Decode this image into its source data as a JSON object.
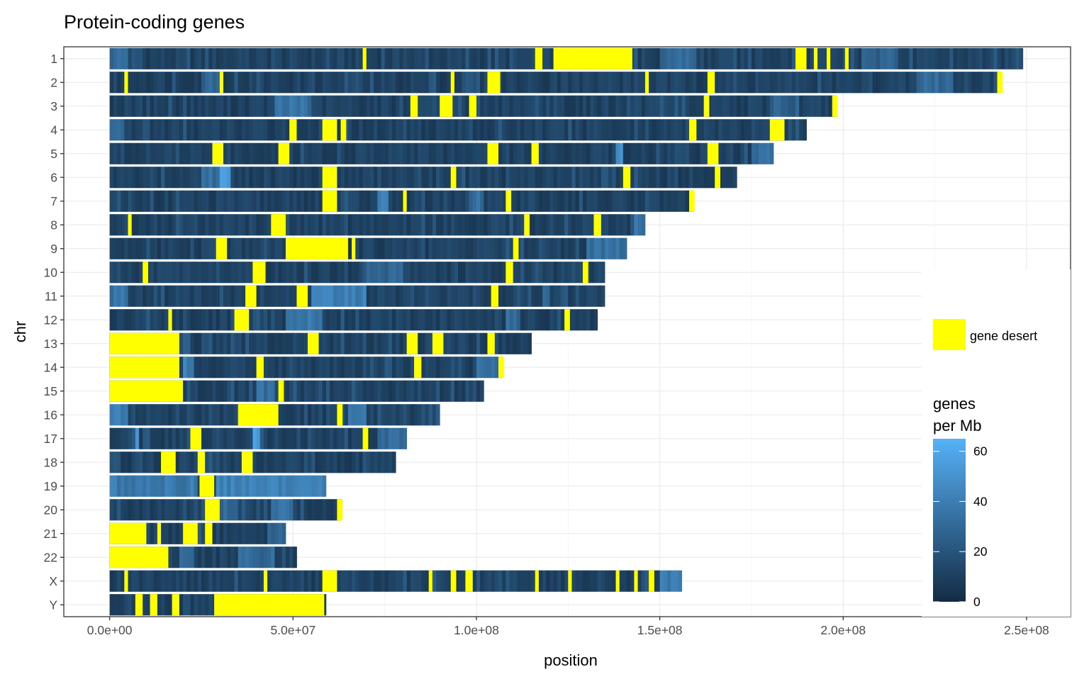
{
  "chart_data": {
    "type": "heatmap",
    "title": "Protein-coding genes",
    "xlabel": "position",
    "ylabel": "chr",
    "xlim": [
      -12500000,
      262000000
    ],
    "x_ticks": [
      {
        "value": 0,
        "label": "0.0e+00"
      },
      {
        "value": 50000000,
        "label": "5.0e+07"
      },
      {
        "value": 100000000,
        "label": "1.0e+08"
      },
      {
        "value": 150000000,
        "label": "1.5e+08"
      },
      {
        "value": 200000000,
        "label": "2.0e+08"
      },
      {
        "value": 250000000,
        "label": "2.5e+08"
      }
    ],
    "grid": true,
    "bin_size_bp": 1000000,
    "chromosomes": [
      {
        "name": "1",
        "length": 249000000,
        "deserts": [
          [
            121000000,
            142500000
          ],
          [
            69000000,
            70000000
          ],
          [
            116000000,
            118000000
          ],
          [
            187000000,
            190000000
          ],
          [
            192000000,
            193000000
          ],
          [
            195500000,
            196500000
          ],
          [
            200500000,
            201500000
          ]
        ],
        "peaks": [
          [
            0,
            5000000,
            30
          ],
          [
            150000000,
            160000000,
            30
          ],
          [
            205000000,
            215000000,
            26
          ]
        ]
      },
      {
        "name": "2",
        "length": 243000000,
        "deserts": [
          [
            4000000,
            5000000
          ],
          [
            93000000,
            94000000
          ],
          [
            103000000,
            106500000
          ],
          [
            163000000,
            165000000
          ],
          [
            242000000,
            243500000
          ],
          [
            30000000,
            31000000
          ],
          [
            146000000,
            147000000
          ]
        ],
        "peaks": [
          [
            25000000,
            30000000,
            28
          ],
          [
            220000000,
            230000000,
            30
          ]
        ]
      },
      {
        "name": "3",
        "length": 198000000,
        "deserts": [
          [
            90000000,
            93500000
          ],
          [
            98000000,
            100000000
          ],
          [
            82000000,
            84000000
          ],
          [
            162000000,
            163500000
          ],
          [
            197000000,
            198500000
          ]
        ],
        "peaks": [
          [
            45000000,
            55000000,
            34
          ],
          [
            180000000,
            188000000,
            26
          ]
        ]
      },
      {
        "name": "4",
        "length": 190000000,
        "deserts": [
          [
            58000000,
            62000000
          ],
          [
            180000000,
            184000000
          ],
          [
            158000000,
            160000000
          ],
          [
            49000000,
            51000000
          ],
          [
            63000000,
            64500000
          ]
        ],
        "peaks": [
          [
            0,
            4000000,
            30
          ]
        ]
      },
      {
        "name": "5",
        "length": 181000000,
        "deserts": [
          [
            28000000,
            31000000
          ],
          [
            46000000,
            49000000
          ],
          [
            103000000,
            106000000
          ],
          [
            163000000,
            166000000
          ],
          [
            115000000,
            117000000
          ]
        ],
        "peaks": [
          [
            138000000,
            140000000,
            45
          ],
          [
            175000000,
            181000000,
            32
          ]
        ]
      },
      {
        "name": "6",
        "length": 171000000,
        "deserts": [
          [
            58000000,
            62000000
          ],
          [
            93000000,
            94500000
          ],
          [
            140000000,
            142000000
          ],
          [
            165000000,
            166500000
          ]
        ],
        "peaks": [
          [
            30000000,
            33000000,
            55
          ],
          [
            25000000,
            30000000,
            32
          ]
        ]
      },
      {
        "name": "7",
        "length": 159000000,
        "deserts": [
          [
            58000000,
            62000000
          ],
          [
            80000000,
            81000000
          ],
          [
            108000000,
            109500000
          ],
          [
            158000000,
            159500000
          ]
        ],
        "peaks": [
          [
            73000000,
            76000000,
            40
          ],
          [
            98000000,
            102000000,
            32
          ]
        ]
      },
      {
        "name": "8",
        "length": 146000000,
        "deserts": [
          [
            44000000,
            48000000
          ],
          [
            132000000,
            134000000
          ],
          [
            113000000,
            114500000
          ],
          [
            5000000,
            6000000
          ]
        ],
        "peaks": [
          [
            143000000,
            146000000,
            35
          ]
        ]
      },
      {
        "name": "9",
        "length": 141000000,
        "deserts": [
          [
            48000000,
            65000000
          ],
          [
            29000000,
            32000000
          ],
          [
            110000000,
            111500000
          ],
          [
            66000000,
            67000000
          ]
        ],
        "peaks": [
          [
            130000000,
            141000000,
            34
          ]
        ]
      },
      {
        "name": "10",
        "length": 135000000,
        "deserts": [
          [
            39000000,
            42500000
          ],
          [
            108000000,
            110000000
          ],
          [
            129000000,
            130500000
          ],
          [
            9000000,
            10500000
          ]
        ],
        "peaks": [
          [
            70000000,
            80000000,
            28
          ]
        ]
      },
      {
        "name": "11",
        "length": 135000000,
        "deserts": [
          [
            37000000,
            40000000
          ],
          [
            51000000,
            54000000
          ],
          [
            104000000,
            106000000
          ]
        ],
        "peaks": [
          [
            0,
            5000000,
            35
          ],
          [
            55000000,
            70000000,
            40
          ],
          [
            118000000,
            120000000,
            30
          ]
        ]
      },
      {
        "name": "12",
        "length": 133000000,
        "deserts": [
          [
            34000000,
            38000000
          ],
          [
            124000000,
            125500000
          ],
          [
            16000000,
            17000000
          ]
        ],
        "peaks": [
          [
            48000000,
            58000000,
            38
          ],
          [
            108000000,
            112000000,
            30
          ]
        ]
      },
      {
        "name": "13",
        "length": 115000000,
        "deserts": [
          [
            0,
            19000000
          ],
          [
            54000000,
            57000000
          ],
          [
            81000000,
            84000000
          ],
          [
            88000000,
            91000000
          ],
          [
            103000000,
            105000000
          ]
        ],
        "peaks": [
          [
            20000000,
            22000000,
            28
          ]
        ]
      },
      {
        "name": "14",
        "length": 107000000,
        "deserts": [
          [
            0,
            19000000
          ],
          [
            40000000,
            42000000
          ],
          [
            83000000,
            85000000
          ],
          [
            106000000,
            107500000
          ]
        ],
        "peaks": [
          [
            20000000,
            23000000,
            40
          ],
          [
            100000000,
            106000000,
            34
          ]
        ]
      },
      {
        "name": "15",
        "length": 102000000,
        "deserts": [
          [
            0,
            20000000
          ],
          [
            46000000,
            47500000
          ]
        ],
        "peaks": [
          [
            40000000,
            45000000,
            32
          ]
        ]
      },
      {
        "name": "16",
        "length": 90000000,
        "deserts": [
          [
            35000000,
            46000000
          ],
          [
            62000000,
            63500000
          ]
        ],
        "peaks": [
          [
            0,
            5000000,
            40
          ],
          [
            65000000,
            70000000,
            34
          ]
        ]
      },
      {
        "name": "17",
        "length": 81000000,
        "deserts": [
          [
            22000000,
            25000000
          ],
          [
            69000000,
            70500000
          ]
        ],
        "peaks": [
          [
            7000000,
            8000000,
            55
          ],
          [
            39000000,
            41000000,
            58
          ],
          [
            73000000,
            81000000,
            30
          ]
        ]
      },
      {
        "name": "18",
        "length": 78000000,
        "deserts": [
          [
            14000000,
            18000000
          ],
          [
            36000000,
            39000000
          ],
          [
            24000000,
            26000000
          ]
        ],
        "peaks": [
          [
            0,
            3000000,
            22
          ]
        ]
      },
      {
        "name": "19",
        "length": 59000000,
        "deserts": [
          [
            24500000,
            28500000
          ]
        ],
        "peaks": [
          [
            0,
            24000000,
            38
          ],
          [
            29000000,
            59000000,
            42
          ]
        ]
      },
      {
        "name": "20",
        "length": 63000000,
        "deserts": [
          [
            26000000,
            30000000
          ],
          [
            62000000,
            63500000
          ]
        ],
        "peaks": [
          [
            30000000,
            35000000,
            30
          ],
          [
            44000000,
            50000000,
            32
          ]
        ]
      },
      {
        "name": "21",
        "length": 48000000,
        "deserts": [
          [
            0,
            10000000
          ],
          [
            20000000,
            24000000
          ],
          [
            13000000,
            14000000
          ],
          [
            26000000,
            28000000
          ]
        ],
        "peaks": [
          [
            43000000,
            48000000,
            30
          ]
        ]
      },
      {
        "name": "22",
        "length": 51000000,
        "deserts": [
          [
            0,
            16000000
          ]
        ],
        "peaks": [
          [
            19000000,
            23000000,
            34
          ],
          [
            35000000,
            45000000,
            30
          ]
        ]
      },
      {
        "name": "X",
        "length": 156000000,
        "deserts": [
          [
            58000000,
            62000000
          ],
          [
            4000000,
            5000000
          ],
          [
            42000000,
            43000000
          ],
          [
            87000000,
            88000000
          ],
          [
            93000000,
            94500000
          ],
          [
            97000000,
            99000000
          ],
          [
            116000000,
            117000000
          ],
          [
            125000000,
            126000000
          ],
          [
            138000000,
            139000000
          ],
          [
            143000000,
            144000000
          ],
          [
            147000000,
            148500000
          ]
        ],
        "peaks": [
          [
            150000000,
            156000000,
            38
          ]
        ]
      },
      {
        "name": "Y",
        "length": 59000000,
        "deserts": [
          [
            28500000,
            58500000
          ],
          [
            7000000,
            9000000
          ],
          [
            11000000,
            13000000
          ],
          [
            17000000,
            19000000
          ]
        ],
        "peaks": []
      }
    ],
    "desert_color": "#FFFF00",
    "legend_desert": {
      "label": "gene desert",
      "color": "#FFFF00"
    },
    "colorbar": {
      "title_line1": "genes",
      "title_line2": "per Mb",
      "low_color": "#132B43",
      "high_color": "#56B1F7",
      "min": 0,
      "max": 65,
      "ticks": [
        {
          "value": 0,
          "label": "0"
        },
        {
          "value": 20,
          "label": "20"
        },
        {
          "value": 40,
          "label": "40"
        },
        {
          "value": 60,
          "label": "60"
        }
      ]
    }
  }
}
